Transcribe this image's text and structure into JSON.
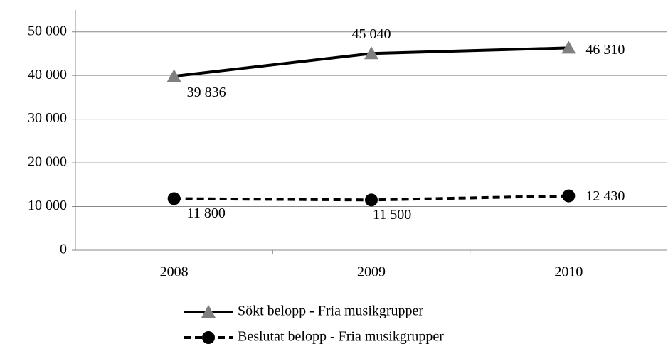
{
  "chart_data": {
    "type": "line",
    "categories": [
      "2008",
      "2009",
      "2010"
    ],
    "series": [
      {
        "name": "Sökt belopp - Fria musikgrupper",
        "color": "#000000",
        "line_style": "solid",
        "marker": "triangle",
        "marker_color": "#808080",
        "values": [
          39836,
          45040,
          46310
        ],
        "value_labels": [
          "39 836",
          "45 040",
          "46 310"
        ]
      },
      {
        "name": "Beslutat belopp - Fria musikgrupper",
        "color": "#000000",
        "line_style": "dashed",
        "marker": "circle",
        "marker_color": "#000000",
        "values": [
          11800,
          11500,
          12430
        ],
        "value_labels": [
          "11 800",
          "11 500",
          "12 430"
        ]
      }
    ],
    "ylim": [
      0,
      55000
    ],
    "yticks": [
      0,
      {
        "value": 10000,
        "label": "10 000"
      },
      {
        "value": 20000,
        "label": "20 000"
      },
      {
        "value": 30000,
        "label": "30 000"
      },
      {
        "value": 40000,
        "label": "40 000"
      },
      {
        "value": 50000,
        "label": "50 000"
      }
    ],
    "grid": true,
    "legend": "bottom"
  }
}
